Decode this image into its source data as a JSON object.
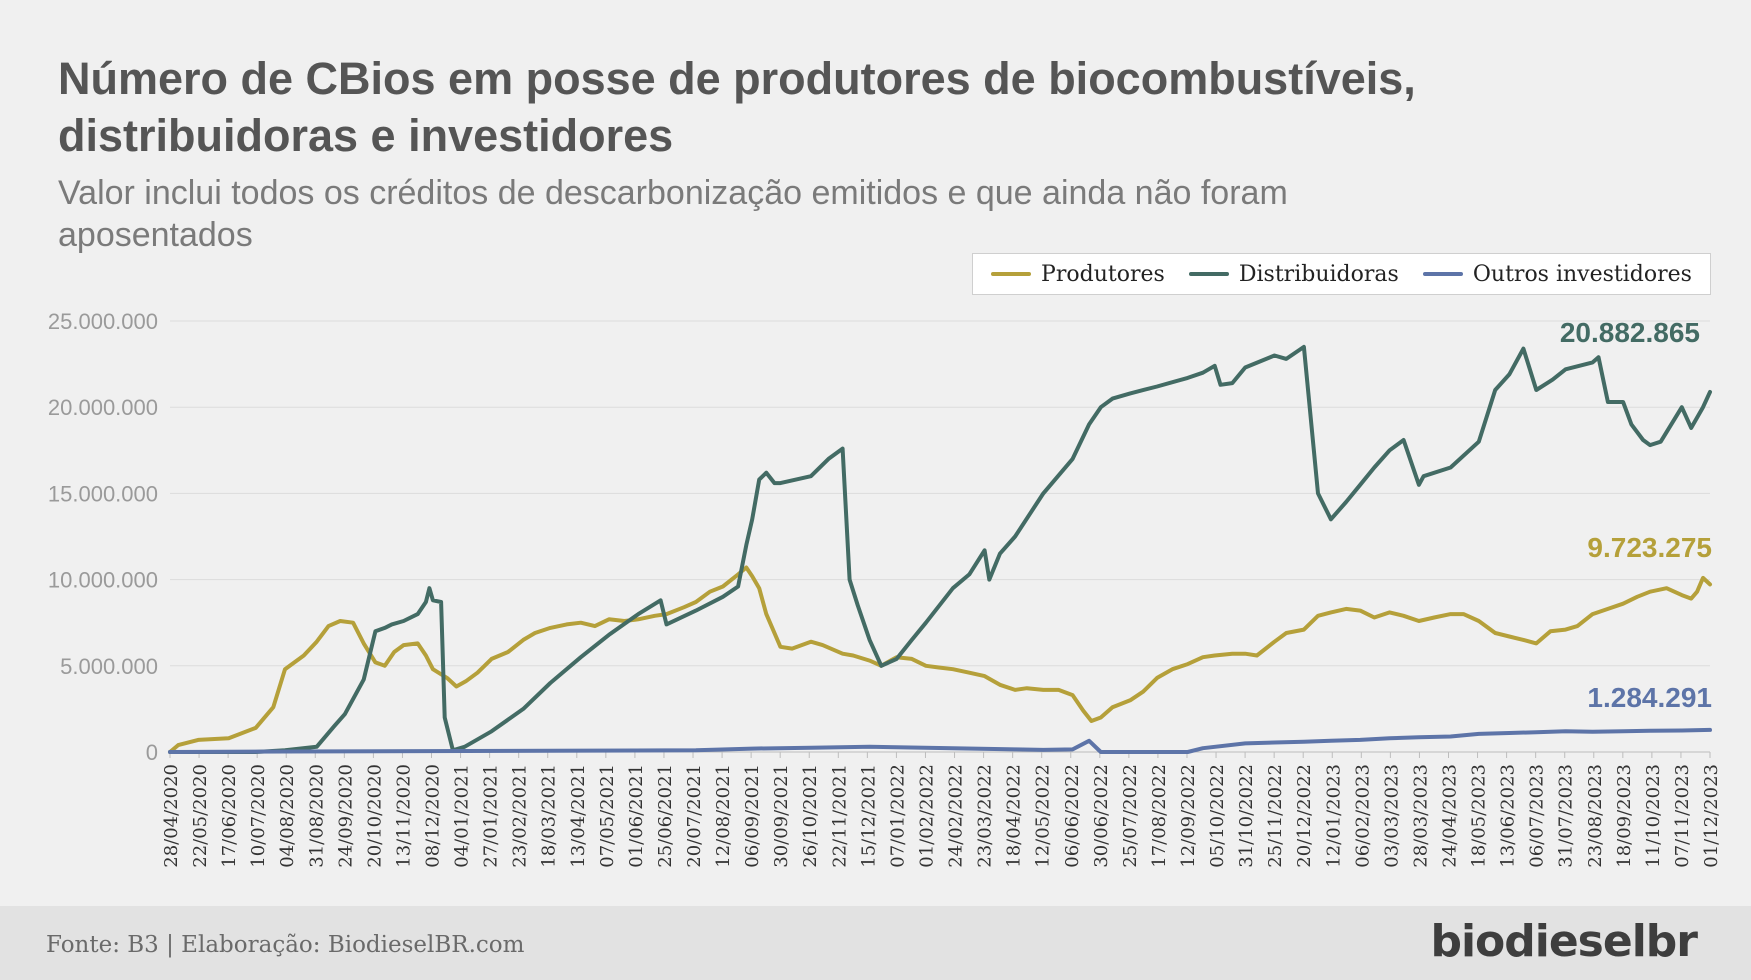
{
  "title": "Número de CBios em posse de produtores de biocombustíveis, distribuidoras e investidores",
  "subtitle": "Valor inclui todos os créditos de descarbonização emitidos e que ainda não foram aposentados",
  "legend": [
    "Produtores",
    "Distribuidoras",
    "Outros investidores"
  ],
  "colors": {
    "produtores": "#b5a03a",
    "distribuidoras": "#436b64",
    "outros": "#5d74a8"
  },
  "footer": {
    "source": "Fonte: B3 | Elaboração: BiodieselBR.com",
    "logo": "biodieselbr"
  },
  "chart_data": {
    "type": "line",
    "ylim": [
      0,
      25000000
    ],
    "y_ticks": [
      "0",
      "5.000.000",
      "10.000.000",
      "15.000.000",
      "20.000.000",
      "25.000.000"
    ],
    "y_tick_values": [
      0,
      5000000,
      10000000,
      15000000,
      20000000,
      25000000
    ],
    "x_range": [
      "2020-04-28",
      "2023-12-01"
    ],
    "x_tick_labels": [
      "28/04/2020",
      "22/05/2020",
      "17/06/2020",
      "10/07/2020",
      "04/08/2020",
      "31/08/2020",
      "24/09/2020",
      "20/10/2020",
      "13/11/2020",
      "08/12/2020",
      "04/01/2021",
      "27/01/2021",
      "23/02/2021",
      "18/03/2021",
      "13/04/2021",
      "07/05/2021",
      "01/06/2021",
      "25/06/2021",
      "20/07/2021",
      "12/08/2021",
      "06/09/2021",
      "30/09/2021",
      "26/10/2021",
      "22/11/2021",
      "15/12/2021",
      "07/01/2022",
      "01/02/2022",
      "24/02/2022",
      "23/03/2022",
      "18/04/2022",
      "12/05/2022",
      "06/06/2022",
      "30/06/2022",
      "25/07/2022",
      "17/08/2022",
      "12/09/2022",
      "05/10/2022",
      "31/10/2022",
      "25/11/2022",
      "20/12/2022",
      "12/01/2023",
      "06/02/2023",
      "03/03/2023",
      "28/03/2023",
      "24/04/2023",
      "18/05/2023",
      "13/06/2023",
      "06/07/2023",
      "31/07/2023",
      "23/08/2023",
      "18/09/2023",
      "11/10/2023",
      "07/11/2023",
      "01/12/2023"
    ],
    "grid": true,
    "legend_position": "top-right",
    "series": [
      {
        "name": "Produtores",
        "end_label": "9.723.275",
        "x": [
          "2020-04-28",
          "2020-05-05",
          "2020-05-22",
          "2020-06-17",
          "2020-07-10",
          "2020-07-25",
          "2020-08-04",
          "2020-08-20",
          "2020-08-31",
          "2020-09-10",
          "2020-09-20",
          "2020-10-01",
          "2020-10-10",
          "2020-10-20",
          "2020-10-28",
          "2020-11-05",
          "2020-11-13",
          "2020-11-25",
          "2020-12-02",
          "2020-12-08",
          "2020-12-20",
          "2020-12-28",
          "2021-01-05",
          "2021-01-15",
          "2021-01-27",
          "2021-02-10",
          "2021-02-23",
          "2021-03-05",
          "2021-03-18",
          "2021-04-01",
          "2021-04-13",
          "2021-04-25",
          "2021-05-07",
          "2021-05-20",
          "2021-06-01",
          "2021-06-15",
          "2021-06-25",
          "2021-07-10",
          "2021-07-20",
          "2021-08-01",
          "2021-08-12",
          "2021-08-25",
          "2021-09-01",
          "2021-09-06",
          "2021-09-12",
          "2021-09-18",
          "2021-09-30",
          "2021-10-10",
          "2021-10-26",
          "2021-11-05",
          "2021-11-22",
          "2021-12-01",
          "2021-12-15",
          "2021-12-25",
          "2022-01-07",
          "2022-01-20",
          "2022-02-01",
          "2022-02-12",
          "2022-02-24",
          "2022-03-10",
          "2022-03-23",
          "2022-04-05",
          "2022-04-18",
          "2022-04-28",
          "2022-05-12",
          "2022-05-25",
          "2022-06-06",
          "2022-06-15",
          "2022-06-22",
          "2022-06-30",
          "2022-07-10",
          "2022-07-25",
          "2022-08-05",
          "2022-08-17",
          "2022-08-30",
          "2022-09-12",
          "2022-09-25",
          "2022-10-05",
          "2022-10-20",
          "2022-10-31",
          "2022-11-10",
          "2022-11-25",
          "2022-12-05",
          "2022-12-20",
          "2023-01-01",
          "2023-01-12",
          "2023-01-25",
          "2023-02-06",
          "2023-02-18",
          "2023-03-03",
          "2023-03-15",
          "2023-03-28",
          "2023-04-10",
          "2023-04-24",
          "2023-05-05",
          "2023-05-18",
          "2023-06-01",
          "2023-06-13",
          "2023-06-25",
          "2023-07-06",
          "2023-07-18",
          "2023-07-31",
          "2023-08-10",
          "2023-08-23",
          "2023-09-05",
          "2023-09-18",
          "2023-09-30",
          "2023-10-11",
          "2023-10-25",
          "2023-11-07",
          "2023-11-15",
          "2023-11-20",
          "2023-11-25",
          "2023-12-01"
        ],
        "values": [
          0,
          400000,
          700000,
          800000,
          1400000,
          2600000,
          4800000,
          5600000,
          6400000,
          7300000,
          7600000,
          7500000,
          6300000,
          5200000,
          5000000,
          5800000,
          6200000,
          6300000,
          5600000,
          4800000,
          4300000,
          3800000,
          4100000,
          4600000,
          5400000,
          5800000,
          6500000,
          6900000,
          7200000,
          7400000,
          7500000,
          7300000,
          7700000,
          7600000,
          7700000,
          7900000,
          8000000,
          8400000,
          8700000,
          9300000,
          9600000,
          10300000,
          10700000,
          10200000,
          9500000,
          8000000,
          6100000,
          6000000,
          6400000,
          6200000,
          5700000,
          5600000,
          5300000,
          5000000,
          5500000,
          5400000,
          5000000,
          4900000,
          4800000,
          4600000,
          4400000,
          3900000,
          3600000,
          3700000,
          3600000,
          3600000,
          3300000,
          2400000,
          1800000,
          2000000,
          2600000,
          3000000,
          3500000,
          4300000,
          4800000,
          5100000,
          5500000,
          5600000,
          5700000,
          5700000,
          5600000,
          6400000,
          6900000,
          7100000,
          7900000,
          8100000,
          8300000,
          8200000,
          7800000,
          8100000,
          7900000,
          7600000,
          7800000,
          8000000,
          8000000,
          7600000,
          6900000,
          6700000,
          6500000,
          6300000,
          7000000,
          7100000,
          7300000,
          8000000,
          8300000,
          8600000,
          9000000,
          9300000,
          9500000,
          9100000,
          8900000,
          9300000,
          10100000,
          9723275
        ]
      },
      {
        "name": "Distribuidoras",
        "end_label": "20.882.865",
        "x": [
          "2020-04-28",
          "2020-07-10",
          "2020-08-04",
          "2020-08-31",
          "2020-09-15",
          "2020-09-24",
          "2020-10-10",
          "2020-10-20",
          "2020-10-28",
          "2020-11-03",
          "2020-11-13",
          "2020-11-25",
          "2020-12-02",
          "2020-12-05",
          "2020-12-08",
          "2020-12-15",
          "2020-12-18",
          "2020-12-25",
          "2021-01-04",
          "2021-01-27",
          "2021-02-23",
          "2021-03-18",
          "2021-04-13",
          "2021-05-07",
          "2021-06-01",
          "2021-06-20",
          "2021-06-25",
          "2021-07-20",
          "2021-08-12",
          "2021-08-25",
          "2021-09-01",
          "2021-09-06",
          "2021-09-12",
          "2021-09-18",
          "2021-09-25",
          "2021-09-30",
          "2021-10-26",
          "2021-11-10",
          "2021-11-22",
          "2021-11-28",
          "2021-12-05",
          "2021-12-15",
          "2021-12-25",
          "2022-01-07",
          "2022-01-20",
          "2022-02-01",
          "2022-02-24",
          "2022-03-10",
          "2022-03-23",
          "2022-03-27",
          "2022-04-05",
          "2022-04-18",
          "2022-05-12",
          "2022-06-06",
          "2022-06-20",
          "2022-06-30",
          "2022-07-10",
          "2022-07-25",
          "2022-08-17",
          "2022-09-12",
          "2022-09-25",
          "2022-10-05",
          "2022-10-10",
          "2022-10-20",
          "2022-10-31",
          "2022-11-25",
          "2022-12-05",
          "2022-12-20",
          "2022-12-25",
          "2023-01-01",
          "2023-01-12",
          "2023-01-25",
          "2023-02-06",
          "2023-02-18",
          "2023-03-03",
          "2023-03-15",
          "2023-03-28",
          "2023-04-01",
          "2023-04-24",
          "2023-05-18",
          "2023-06-01",
          "2023-06-13",
          "2023-06-25",
          "2023-07-06",
          "2023-07-20",
          "2023-07-31",
          "2023-08-23",
          "2023-08-28",
          "2023-09-05",
          "2023-09-18",
          "2023-09-25",
          "2023-10-05",
          "2023-10-11",
          "2023-10-20",
          "2023-11-07",
          "2023-11-15",
          "2023-11-25",
          "2023-12-01"
        ],
        "values": [
          0,
          0,
          100000,
          300000,
          1500000,
          2200000,
          4200000,
          7000000,
          7200000,
          7400000,
          7600000,
          8000000,
          8700000,
          9500000,
          8800000,
          8700000,
          2000000,
          100000,
          300000,
          1200000,
          2500000,
          4000000,
          5500000,
          6800000,
          8000000,
          8800000,
          7400000,
          8200000,
          9000000,
          9600000,
          12000000,
          13500000,
          15800000,
          16200000,
          15600000,
          15600000,
          16000000,
          17000000,
          17600000,
          10000000,
          8500000,
          6500000,
          5000000,
          5400000,
          6500000,
          7500000,
          9500000,
          10300000,
          11700000,
          10000000,
          11500000,
          12500000,
          15000000,
          17000000,
          19000000,
          20000000,
          20500000,
          20800000,
          21200000,
          21700000,
          22000000,
          22400000,
          21300000,
          21400000,
          22300000,
          23000000,
          22800000,
          23500000,
          20000000,
          15000000,
          13500000,
          14500000,
          15500000,
          16500000,
          17500000,
          18100000,
          15500000,
          16000000,
          16500000,
          18000000,
          21000000,
          21900000,
          23400000,
          21000000,
          21600000,
          22200000,
          22600000,
          22900000,
          20300000,
          20300000,
          19000000,
          18100000,
          17800000,
          18000000,
          20000000,
          18800000,
          20000000,
          20882865
        ]
      },
      {
        "name": "Outros investidores",
        "end_label": "1.284.291",
        "x": [
          "2020-04-28",
          "2020-08-04",
          "2021-07-20",
          "2021-09-06",
          "2021-10-26",
          "2021-12-15",
          "2022-01-07",
          "2022-02-24",
          "2022-04-18",
          "2022-05-12",
          "2022-06-06",
          "2022-06-20",
          "2022-06-30",
          "2022-07-25",
          "2022-08-17",
          "2022-09-12",
          "2022-09-25",
          "2022-10-31",
          "2022-11-25",
          "2022-12-20",
          "2023-01-12",
          "2023-02-06",
          "2023-03-03",
          "2023-03-28",
          "2023-04-24",
          "2023-05-18",
          "2023-06-13",
          "2023-07-06",
          "2023-07-31",
          "2023-08-23",
          "2023-09-18",
          "2023-10-11",
          "2023-11-07",
          "2023-12-01"
        ],
        "values": [
          0,
          30000,
          100000,
          200000,
          250000,
          300000,
          280000,
          220000,
          150000,
          120000,
          150000,
          650000,
          0,
          0,
          0,
          0,
          220000,
          500000,
          550000,
          600000,
          650000,
          700000,
          800000,
          850000,
          900000,
          1050000,
          1100000,
          1150000,
          1200000,
          1180000,
          1200000,
          1230000,
          1250000,
          1284291
        ]
      }
    ]
  }
}
